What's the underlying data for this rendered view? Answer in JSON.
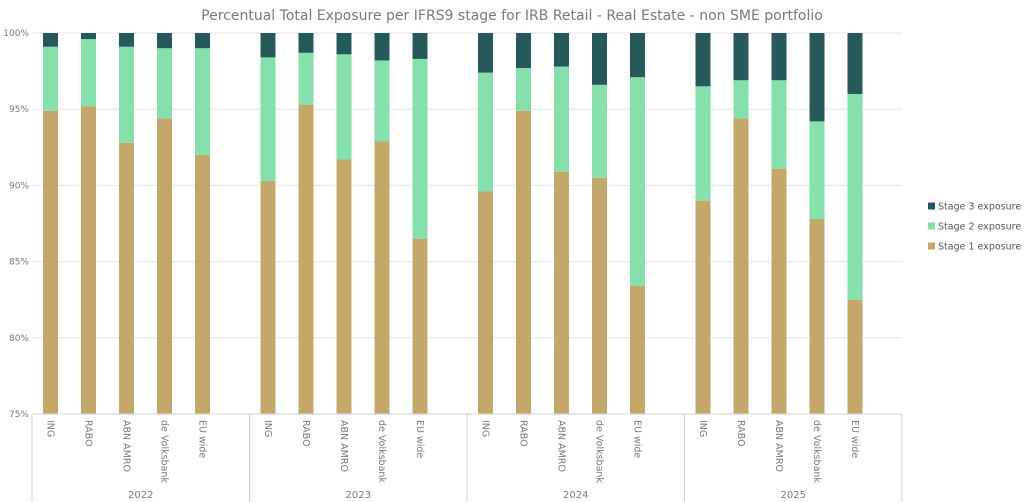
{
  "chart_data": {
    "type": "bar",
    "stacked": true,
    "title": "Percentual Total Exposure per IFRS9 stage for IRB Retail - Real Estate - non SME portfolio",
    "ylim": [
      75,
      100
    ],
    "yticks": [
      "75%",
      "80%",
      "85%",
      "90%",
      "95%",
      "100%"
    ],
    "ytick_values": [
      75,
      80,
      85,
      90,
      95,
      100
    ],
    "grid": true,
    "legend_position": "right",
    "groups": [
      "2022",
      "2023",
      "2024",
      "2025"
    ],
    "categories": [
      "ING",
      "RABO",
      "ABN AMRO",
      "de Volksbank",
      "EU wide"
    ],
    "series": [
      {
        "name": "Stage 1 exposure",
        "color": "#c4a76a",
        "values": [
          [
            94.9,
            95.2,
            92.8,
            94.4,
            92.0
          ],
          [
            90.3,
            95.3,
            91.7,
            92.9,
            86.5
          ],
          [
            89.6,
            94.9,
            90.9,
            90.5,
            83.4
          ],
          [
            89.0,
            94.4,
            91.1,
            87.8,
            82.5
          ]
        ]
      },
      {
        "name": "Stage 2 exposure",
        "color": "#86e0ae",
        "values": [
          [
            4.2,
            4.4,
            6.3,
            4.6,
            7.0
          ],
          [
            8.1,
            3.4,
            6.9,
            5.3,
            11.8
          ],
          [
            7.8,
            2.8,
            6.9,
            6.1,
            13.7
          ],
          [
            7.5,
            2.5,
            5.8,
            6.4,
            13.5
          ]
        ]
      },
      {
        "name": "Stage 3 exposure",
        "color": "#27585a",
        "values": [
          [
            0.9,
            0.4,
            0.9,
            1.0,
            1.0
          ],
          [
            1.6,
            1.3,
            1.4,
            1.8,
            1.7
          ],
          [
            2.6,
            2.3,
            2.2,
            3.4,
            2.9
          ],
          [
            3.5,
            3.1,
            3.1,
            5.8,
            4.0
          ]
        ]
      }
    ],
    "legend_order": [
      "Stage 3 exposure",
      "Stage 2 exposure",
      "Stage 1 exposure"
    ]
  }
}
